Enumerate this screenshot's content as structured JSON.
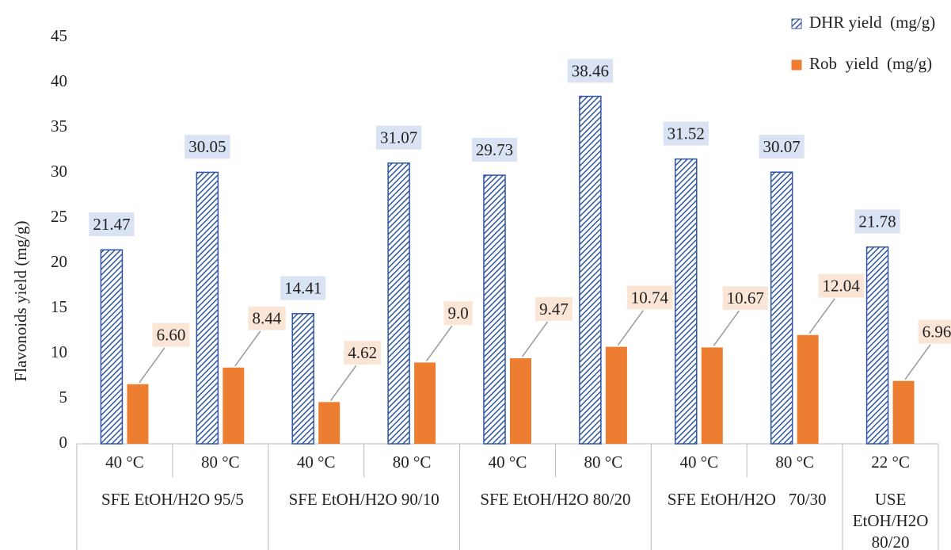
{
  "chart_data": {
    "type": "bar",
    "y_label": "Flavonoids yield (mg/g)",
    "groups": [
      {
        "label": "SFE EtOH/H2O 95/5",
        "categories": [
          "40 °C",
          "80 °C"
        ]
      },
      {
        "label": "SFE EtOH/H2O 90/10",
        "categories": [
          "40 °C",
          "80 °C"
        ]
      },
      {
        "label": "SFE EtOH/H2O 80/20",
        "categories": [
          "40 °C",
          "80 °C"
        ]
      },
      {
        "label": "SFE EtOH/H2O   70/30",
        "categories": [
          "40 °C",
          "80 °C"
        ]
      },
      {
        "label": [
          "USE",
          "EtOH/H2O",
          "80/20"
        ],
        "categories": [
          "22 °C"
        ]
      }
    ],
    "series": [
      {
        "name": "DHR yield  (mg/g)",
        "color": "#2f55a4",
        "pattern": "hatch",
        "values": [
          21.47,
          30.05,
          14.41,
          31.07,
          29.73,
          38.46,
          31.52,
          30.07,
          21.78
        ]
      },
      {
        "name": "Rob  yield  (mg/g)",
        "color": "#ed7d31",
        "values": [
          6.6,
          8.44,
          4.62,
          9.0,
          9.47,
          10.74,
          10.67,
          12.04,
          6.96
        ],
        "value_labels": [
          "6.60",
          "8.44",
          "4.62",
          "9.0",
          "9.47",
          "10.74",
          "10.67",
          "12.04",
          "6.96"
        ]
      }
    ],
    "ylim": [
      0,
      45
    ],
    "yticks": [
      0,
      5,
      10,
      15,
      20,
      25,
      30,
      35,
      40,
      45
    ],
    "grid": false,
    "legend": "top-right"
  }
}
